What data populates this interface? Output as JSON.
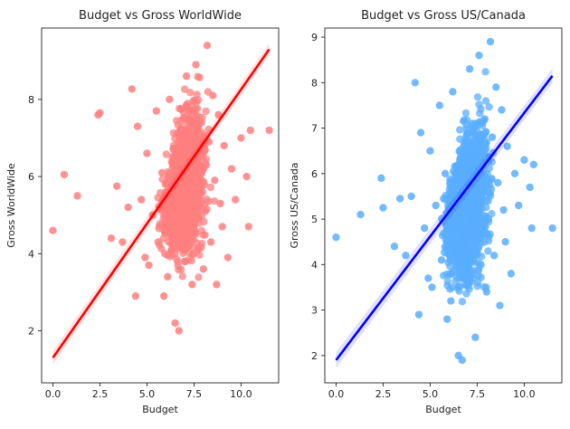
{
  "chart_data": [
    {
      "type": "scatter",
      "title": "Budget vs Gross WorldWide",
      "xlabel": "Budget",
      "ylabel": "Gross WorldWide",
      "xlim": [
        -0.6,
        12.0
      ],
      "ylim": [
        0.65,
        9.85
      ],
      "xticks": [
        0.0,
        2.5,
        5.0,
        7.5,
        10.0
      ],
      "xtick_labels": [
        "0.0",
        "2.5",
        "5.0",
        "7.5",
        "10.0"
      ],
      "yticks": [
        2,
        4,
        6,
        8
      ],
      "ytick_labels": [
        "2",
        "4",
        "6",
        "8"
      ],
      "point_color": "#ff7f7f",
      "line_color": "#ff0000",
      "regression": {
        "x": [
          0.0,
          11.5
        ],
        "y": [
          1.3,
          9.3
        ]
      },
      "points": [
        [
          0.0,
          4.6
        ],
        [
          0.6,
          6.05
        ],
        [
          1.3,
          5.5
        ],
        [
          2.4,
          7.6
        ],
        [
          2.5,
          7.65
        ],
        [
          3.1,
          4.4
        ],
        [
          3.4,
          5.75
        ],
        [
          3.7,
          4.3
        ],
        [
          4.0,
          5.2
        ],
        [
          4.2,
          8.27
        ],
        [
          4.4,
          2.9
        ],
        [
          4.5,
          7.3
        ],
        [
          4.7,
          5.4
        ],
        [
          4.9,
          3.9
        ],
        [
          5.0,
          6.6
        ],
        [
          5.1,
          3.7
        ],
        [
          5.3,
          5.0
        ],
        [
          5.5,
          7.7
        ],
        [
          5.6,
          4.3
        ],
        [
          5.8,
          6.1
        ],
        [
          5.9,
          2.9
        ],
        [
          6.0,
          5.6
        ],
        [
          6.1,
          3.4
        ],
        [
          6.2,
          8.0
        ],
        [
          6.4,
          4.8
        ],
        [
          6.5,
          2.2
        ],
        [
          6.6,
          6.4
        ],
        [
          6.7,
          2.0
        ],
        [
          6.8,
          5.2
        ],
        [
          6.9,
          7.0
        ],
        [
          7.0,
          3.8
        ],
        [
          7.1,
          8.6
        ],
        [
          7.2,
          4.5
        ],
        [
          7.3,
          6.7
        ],
        [
          7.4,
          3.2
        ],
        [
          7.5,
          5.6
        ],
        [
          7.6,
          8.9
        ],
        [
          7.7,
          4.1
        ],
        [
          7.8,
          6.3
        ],
        [
          7.9,
          7.4
        ],
        [
          8.0,
          3.6
        ],
        [
          8.1,
          5.1
        ],
        [
          8.2,
          9.4
        ],
        [
          8.3,
          6.9
        ],
        [
          8.4,
          4.3
        ],
        [
          8.5,
          8.1
        ],
        [
          8.6,
          5.9
        ],
        [
          8.7,
          3.2
        ],
        [
          8.8,
          7.6
        ],
        [
          8.9,
          5.3
        ],
        [
          9.0,
          4.7
        ],
        [
          9.1,
          6.8
        ],
        [
          9.3,
          3.9
        ],
        [
          9.5,
          6.2
        ],
        [
          9.7,
          5.4
        ],
        [
          10.0,
          7.0
        ],
        [
          10.3,
          6.0
        ],
        [
          10.5,
          7.2
        ],
        [
          10.4,
          4.7
        ],
        [
          11.5,
          7.2
        ]
      ]
    },
    {
      "type": "scatter",
      "title": "Budget vs Gross US/Canada",
      "xlabel": "Budget",
      "ylabel": "Gross US/Canada",
      "xlim": [
        -0.6,
        12.0
      ],
      "ylim": [
        1.4,
        9.2
      ],
      "xticks": [
        0.0,
        2.5,
        5.0,
        7.5,
        10.0
      ],
      "xtick_labels": [
        "0.0",
        "2.5",
        "5.0",
        "7.5",
        "10.0"
      ],
      "yticks": [
        2,
        3,
        4,
        5,
        6,
        7,
        8,
        9
      ],
      "ytick_labels": [
        "2",
        "3",
        "4",
        "5",
        "6",
        "7",
        "8",
        "9"
      ],
      "point_color": "#5aaeff",
      "line_color": "#0000ff",
      "regression": {
        "x": [
          0.0,
          11.5
        ],
        "y": [
          1.9,
          8.15
        ]
      },
      "points": [
        [
          0.0,
          4.6
        ],
        [
          1.3,
          5.1
        ],
        [
          2.4,
          5.9
        ],
        [
          2.5,
          5.25
        ],
        [
          3.1,
          4.4
        ],
        [
          3.4,
          5.45
        ],
        [
          3.7,
          4.2
        ],
        [
          4.0,
          5.5
        ],
        [
          4.2,
          8.0
        ],
        [
          4.4,
          2.9
        ],
        [
          4.5,
          6.9
        ],
        [
          4.7,
          4.8
        ],
        [
          4.9,
          3.7
        ],
        [
          5.0,
          6.5
        ],
        [
          5.1,
          3.5
        ],
        [
          5.3,
          5.3
        ],
        [
          5.5,
          7.5
        ],
        [
          5.6,
          4.1
        ],
        [
          5.8,
          6.0
        ],
        [
          5.9,
          2.8
        ],
        [
          6.0,
          5.5
        ],
        [
          6.1,
          3.2
        ],
        [
          6.2,
          7.8
        ],
        [
          6.4,
          4.6
        ],
        [
          6.5,
          2.0
        ],
        [
          6.6,
          6.3
        ],
        [
          6.7,
          1.9
        ],
        [
          6.8,
          5.0
        ],
        [
          6.9,
          6.8
        ],
        [
          7.0,
          3.6
        ],
        [
          7.1,
          8.3
        ],
        [
          7.2,
          4.4
        ],
        [
          7.3,
          6.5
        ],
        [
          7.4,
          2.4
        ],
        [
          7.5,
          5.4
        ],
        [
          7.6,
          8.6
        ],
        [
          7.7,
          4.0
        ],
        [
          7.8,
          6.2
        ],
        [
          7.9,
          7.2
        ],
        [
          8.0,
          3.4
        ],
        [
          8.1,
          5.0
        ],
        [
          8.2,
          8.9
        ],
        [
          8.3,
          6.8
        ],
        [
          8.4,
          4.2
        ],
        [
          8.5,
          7.9
        ],
        [
          8.6,
          5.8
        ],
        [
          8.7,
          3.1
        ],
        [
          8.8,
          7.4
        ],
        [
          8.9,
          5.2
        ],
        [
          9.0,
          4.5
        ],
        [
          9.1,
          6.6
        ],
        [
          9.3,
          3.8
        ],
        [
          9.5,
          6.0
        ],
        [
          9.7,
          5.3
        ],
        [
          10.0,
          6.3
        ],
        [
          10.3,
          5.7
        ],
        [
          10.5,
          6.2
        ],
        [
          10.4,
          4.8
        ],
        [
          11.5,
          4.8
        ]
      ]
    }
  ]
}
